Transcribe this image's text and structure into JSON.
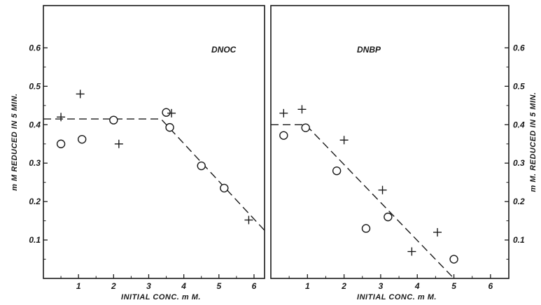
{
  "chart_data": [
    {
      "type": "scatter",
      "title": "DNOC",
      "xlabel": "INITIAL CONC. m M.",
      "ylabel": "m M REDUCED IN 5 MIN.",
      "xlim": [
        0,
        6.3
      ],
      "ylim": [
        0,
        0.71
      ],
      "x_ticks": [
        "1",
        "2",
        "3",
        "4",
        "5",
        "6"
      ],
      "y_ticks": [
        "0.1",
        "0.2",
        "0.3",
        "0.4",
        "0.5",
        "0.6"
      ],
      "y_axis_side": "left",
      "grid": false,
      "series": [
        {
          "marker": "circle",
          "x": [
            0.5,
            1.1,
            2.0,
            3.5,
            3.6,
            4.5,
            5.15
          ],
          "y": [
            0.35,
            0.362,
            0.412,
            0.432,
            0.393,
            0.293,
            0.235
          ]
        },
        {
          "marker": "plus",
          "x": [
            0.5,
            1.05,
            2.15,
            3.65,
            5.85
          ],
          "y": [
            0.42,
            0.48,
            0.35,
            0.43,
            0.152
          ]
        }
      ],
      "trend_line": {
        "style": "dashed",
        "x": [
          0,
          3.35,
          6.3
        ],
        "y": [
          0.415,
          0.415,
          0.125
        ]
      }
    },
    {
      "type": "scatter",
      "title": "DNBP",
      "xlabel": "INITIAL CONC. m M.",
      "ylabel": "m M. REDUCED IN 5 MIN.",
      "xlim": [
        0,
        6.5
      ],
      "ylim": [
        0,
        0.71
      ],
      "x_ticks": [
        "1",
        "2",
        "3",
        "4",
        "5",
        "6"
      ],
      "y_ticks": [
        "0.1",
        "0.2",
        "0.3",
        "0.4",
        "0.5",
        "0.6"
      ],
      "y_axis_side": "right",
      "grid": false,
      "series": [
        {
          "marker": "circle",
          "x": [
            0.35,
            0.95,
            1.8,
            2.6,
            3.2,
            5.0
          ],
          "y": [
            0.372,
            0.392,
            0.28,
            0.13,
            0.16,
            0.05
          ]
        },
        {
          "marker": "plus",
          "x": [
            0.35,
            0.85,
            2.0,
            3.05,
            3.85,
            4.55
          ],
          "y": [
            0.43,
            0.44,
            0.36,
            0.23,
            0.07,
            0.12
          ]
        }
      ],
      "trend_line": {
        "style": "dashed",
        "x": [
          0,
          0.95,
          5.0
        ],
        "y": [
          0.4,
          0.4,
          0.0
        ]
      }
    }
  ]
}
